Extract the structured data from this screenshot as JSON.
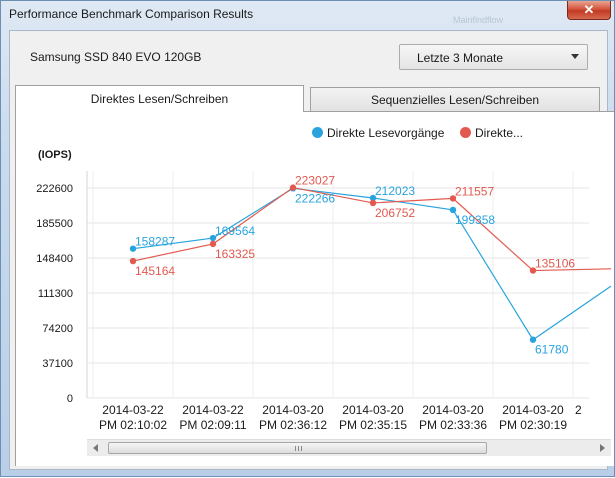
{
  "window": {
    "title": "Performance Benchmark Comparison Results",
    "close_label": "✕",
    "ghost_text": "Mainfindflow"
  },
  "device_name": "Samsung SSD 840 EVO 120GB",
  "period_select": {
    "value": "Letzte 3 Monate"
  },
  "tabs": [
    {
      "label": "Direktes Lesen/Schreiben",
      "active": true
    },
    {
      "label": "Sequenzielles Lesen/Schreiben",
      "active": false
    }
  ],
  "legend": [
    {
      "label": "Direkte Lesevorgänge",
      "color": "#29a3de"
    },
    {
      "label": "Direkte...",
      "color": "#e25a4f"
    }
  ],
  "chart_data": {
    "type": "line",
    "ylabel": "(IOPS)",
    "ylim": [
      0,
      222600
    ],
    "yticks": [
      "0",
      "37100",
      "74200",
      "111300",
      "148400",
      "185500",
      "222600"
    ],
    "categories": [
      [
        "2014-03-22",
        "PM 02:10:02"
      ],
      [
        "2014-03-22",
        "PM 02:09:11"
      ],
      [
        "2014-03-20",
        "PM 02:36:12"
      ],
      [
        "2014-03-20",
        "PM 02:35:15"
      ],
      [
        "2014-03-20",
        "PM 02:33:36"
      ],
      [
        "2014-03-20",
        "PM 02:30:19"
      ],
      [
        "2",
        ""
      ]
    ],
    "series": [
      {
        "name": "Direkte Lesevorgänge",
        "color": "#29a3de",
        "values": [
          158287,
          169564,
          222266,
          212023,
          199358,
          61780,
          120000
        ],
        "labels": [
          "158287",
          "169564",
          "222266",
          "212023",
          "199358",
          "61780",
          ""
        ]
      },
      {
        "name": "Direkte...",
        "color": "#e25a4f",
        "values": [
          145164,
          163325,
          223027,
          206752,
          211557,
          135106,
          137000
        ],
        "labels": [
          "145164",
          "163325",
          "223027",
          "206752",
          "211557",
          "135106",
          ""
        ]
      }
    ],
    "grid": true
  }
}
